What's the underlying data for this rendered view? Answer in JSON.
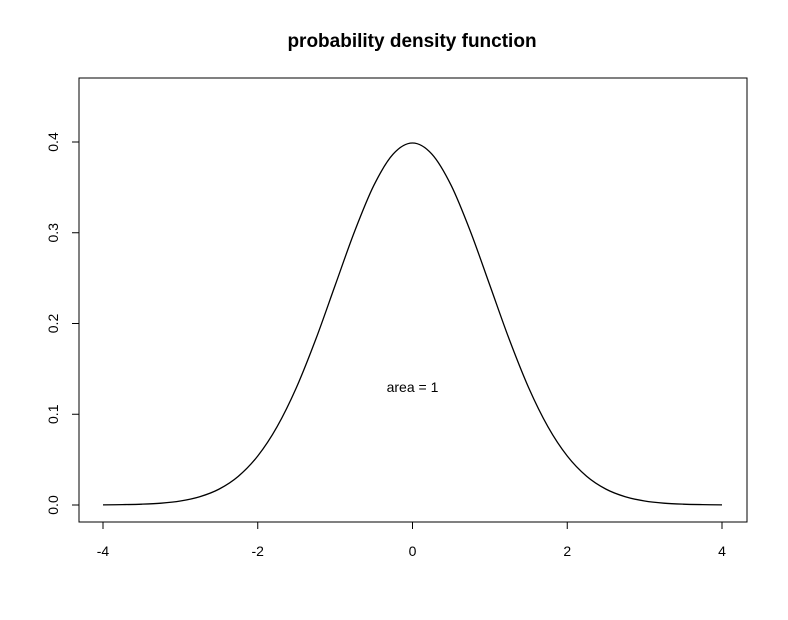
{
  "chart_data": {
    "type": "line",
    "title": "probability density function",
    "xlabel": "",
    "ylabel": "",
    "xlim": [
      -4,
      4
    ],
    "ylim": [
      0,
      0.4
    ],
    "x_ticks": [
      {
        "value": -4,
        "label": "-4"
      },
      {
        "value": -2,
        "label": "-2"
      },
      {
        "value": 0,
        "label": "0"
      },
      {
        "value": 2,
        "label": "2"
      },
      {
        "value": 4,
        "label": "4"
      }
    ],
    "y_ticks": [
      {
        "value": 0.0,
        "label": "0.0"
      },
      {
        "value": 0.1,
        "label": "0.1"
      },
      {
        "value": 0.2,
        "label": "0.2"
      },
      {
        "value": 0.3,
        "label": "0.3"
      },
      {
        "value": 0.4,
        "label": "0.4"
      }
    ],
    "series": [
      {
        "x": [
          -4,
          -3.75,
          -3.5,
          -3.25,
          -3,
          -2.75,
          -2.5,
          -2.25,
          -2,
          -1.75,
          -1.5,
          -1.25,
          -1,
          -0.75,
          -0.5,
          -0.25,
          0,
          0.25,
          0.5,
          0.75,
          1,
          1.25,
          1.5,
          1.75,
          2,
          2.25,
          2.5,
          2.75,
          3,
          3.25,
          3.5,
          3.75,
          4
        ],
        "y": [
          0.0001,
          0.0004,
          0.0009,
          0.002,
          0.0044,
          0.0091,
          0.0175,
          0.0317,
          0.054,
          0.0863,
          0.1295,
          0.1826,
          0.242,
          0.3011,
          0.3521,
          0.3867,
          0.3989,
          0.3867,
          0.3521,
          0.3011,
          0.242,
          0.1826,
          0.1295,
          0.0863,
          0.054,
          0.0317,
          0.0175,
          0.0091,
          0.0044,
          0.002,
          0.0009,
          0.0004,
          0.0001
        ],
        "color": "#000000"
      }
    ],
    "annotations": [
      {
        "text": "area = 1",
        "x": 0,
        "y": 0.13
      }
    ],
    "grid": false,
    "legend": "none"
  }
}
